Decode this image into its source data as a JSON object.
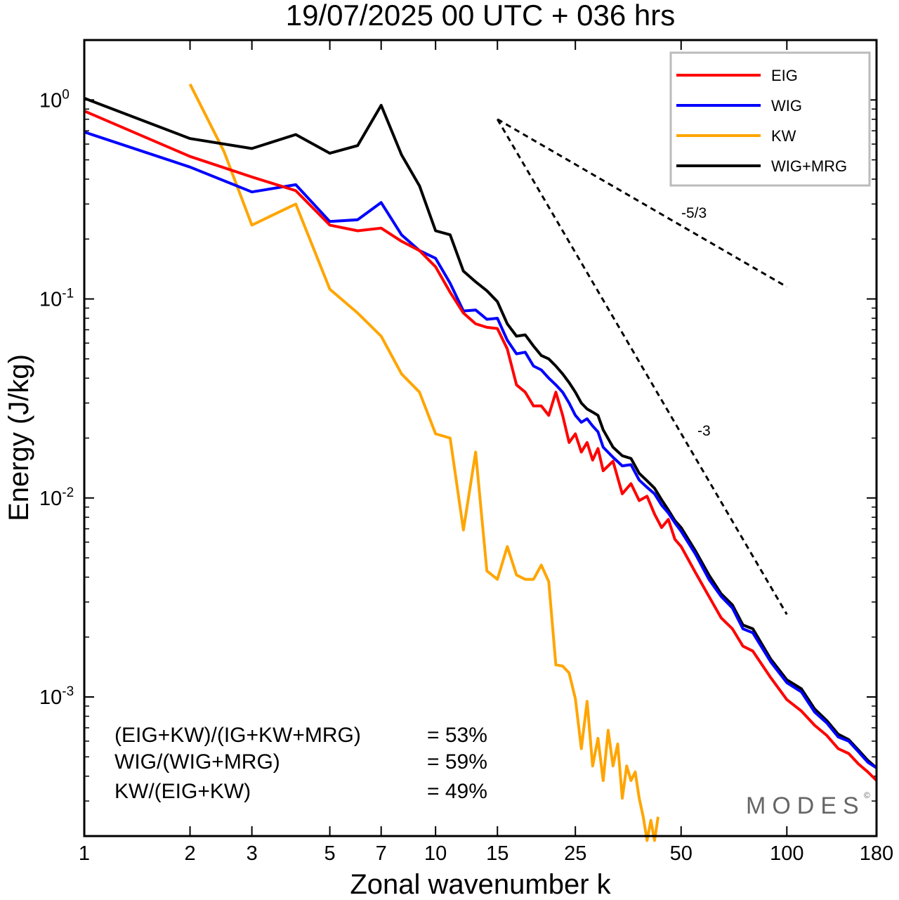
{
  "chart_data": {
    "type": "line",
    "title": "19/07/2025  00 UTC  + 036 hrs",
    "xlabel": "Zonal wavenumber k",
    "ylabel": "Energy (J/kg)",
    "xscale": "log",
    "yscale": "log",
    "xlim": [
      1,
      180
    ],
    "ylim": [
      0.0002,
      2.0
    ],
    "xticks": [
      1,
      2,
      3,
      5,
      7,
      10,
      15,
      25,
      50,
      100,
      180
    ],
    "xticklabels": [
      "1",
      "2",
      "3",
      "5",
      "7",
      "10",
      "15",
      "25",
      "50",
      "100",
      "180"
    ],
    "yticks": [
      {
        "value": 1,
        "base": "10",
        "exp": "0"
      },
      {
        "value": 0.1,
        "base": "10",
        "exp": "-1"
      },
      {
        "value": 0.01,
        "base": "10",
        "exp": "-2"
      },
      {
        "value": 0.001,
        "base": "10",
        "exp": "-3"
      }
    ],
    "legend_position": "top-right",
    "series": [
      {
        "name": "EIG",
        "color": "#ff0000",
        "x": [
          1,
          2,
          3,
          4,
          5,
          6,
          7,
          8,
          9,
          10,
          11,
          12,
          13,
          14,
          15,
          16,
          17,
          18,
          19,
          20,
          21,
          22,
          23,
          24,
          25,
          26,
          27,
          28,
          29,
          30,
          32,
          34,
          36,
          38,
          40,
          42,
          44,
          46,
          48,
          50,
          55,
          60,
          65,
          70,
          75,
          80,
          90,
          100,
          110,
          120,
          130,
          140,
          150,
          160,
          170,
          180
        ],
        "y": [
          0.88,
          0.52,
          0.41,
          0.35,
          0.235,
          0.22,
          0.227,
          0.195,
          0.175,
          0.145,
          0.108,
          0.085,
          0.075,
          0.072,
          0.071,
          0.056,
          0.037,
          0.034,
          0.029,
          0.029,
          0.026,
          0.034,
          0.026,
          0.019,
          0.021,
          0.017,
          0.019,
          0.0155,
          0.0177,
          0.0137,
          0.0153,
          0.0105,
          0.0118,
          0.0097,
          0.0102,
          0.0083,
          0.0071,
          0.0078,
          0.0062,
          0.0057,
          0.0042,
          0.0032,
          0.0025,
          0.0022,
          0.0018,
          0.0017,
          0.00125,
          0.00097,
          0.00085,
          0.00072,
          0.00064,
          0.00055,
          0.00052,
          0.00046,
          0.00042,
          0.00038
        ]
      },
      {
        "name": "WIG",
        "color": "#0000ff",
        "x": [
          1,
          2,
          3,
          4,
          5,
          6,
          7,
          8,
          9,
          10,
          11,
          12,
          13,
          14,
          15,
          16,
          17,
          18,
          19,
          20,
          21,
          22,
          23,
          24,
          25,
          26,
          27,
          28,
          29,
          30,
          32,
          34,
          36,
          38,
          40,
          42,
          44,
          46,
          48,
          50,
          55,
          60,
          65,
          70,
          75,
          80,
          90,
          100,
          110,
          120,
          130,
          140,
          150,
          160,
          170,
          180
        ],
        "y": [
          0.69,
          0.46,
          0.345,
          0.375,
          0.245,
          0.25,
          0.305,
          0.21,
          0.175,
          0.16,
          0.12,
          0.087,
          0.088,
          0.079,
          0.08,
          0.062,
          0.053,
          0.054,
          0.046,
          0.044,
          0.04,
          0.037,
          0.034,
          0.03,
          0.026,
          0.024,
          0.025,
          0.023,
          0.0215,
          0.018,
          0.016,
          0.0145,
          0.0147,
          0.0123,
          0.0113,
          0.0105,
          0.0092,
          0.0084,
          0.0075,
          0.0068,
          0.0052,
          0.0039,
          0.0032,
          0.0028,
          0.0022,
          0.0021,
          0.0015,
          0.00118,
          0.00106,
          0.00084,
          0.00074,
          0.00063,
          0.0006,
          0.00053,
          0.00047,
          0.00044
        ]
      },
      {
        "name": "KW",
        "color": "#ffa500",
        "x": [
          2,
          2.5,
          3,
          4,
          5,
          6,
          7,
          8,
          9,
          10,
          11,
          12,
          13,
          14,
          15,
          16,
          17,
          18,
          19,
          20,
          21,
          22,
          23,
          24,
          25,
          26,
          27,
          28,
          29,
          30,
          31,
          32,
          33,
          34,
          35,
          36,
          37,
          38,
          39,
          40,
          41,
          42,
          43
        ],
        "y": [
          1.2,
          0.55,
          0.235,
          0.3,
          0.112,
          0.085,
          0.065,
          0.042,
          0.034,
          0.021,
          0.02,
          0.0069,
          0.017,
          0.0043,
          0.0039,
          0.0057,
          0.0041,
          0.0039,
          0.0039,
          0.0046,
          0.0038,
          0.00145,
          0.00143,
          0.00132,
          0.00098,
          0.00055,
          0.00095,
          0.00045,
          0.00062,
          0.00038,
          0.00068,
          0.00045,
          0.00058,
          0.00031,
          0.00045,
          0.00038,
          0.00042,
          0.00031,
          0.00025,
          0.00019,
          0.00024,
          0.00019,
          0.00025
        ]
      },
      {
        "name": "WIG+MRG",
        "color": "#000000",
        "x": [
          1,
          2,
          3,
          4,
          5,
          6,
          7,
          8,
          9,
          10,
          11,
          12,
          13,
          14,
          15,
          16,
          17,
          18,
          19,
          20,
          21,
          22,
          23,
          24,
          25,
          26,
          27,
          28,
          29,
          30,
          32,
          34,
          36,
          38,
          40,
          42,
          44,
          46,
          48,
          50,
          55,
          60,
          65,
          70,
          75,
          80,
          90,
          100,
          110,
          120,
          130,
          140,
          150,
          160,
          170,
          180
        ],
        "y": [
          1.02,
          0.64,
          0.57,
          0.67,
          0.54,
          0.59,
          0.94,
          0.53,
          0.37,
          0.22,
          0.21,
          0.138,
          0.122,
          0.11,
          0.097,
          0.075,
          0.065,
          0.066,
          0.058,
          0.052,
          0.05,
          0.046,
          0.042,
          0.038,
          0.034,
          0.03,
          0.028,
          0.027,
          0.026,
          0.022,
          0.018,
          0.0163,
          0.0158,
          0.0133,
          0.0122,
          0.0112,
          0.0098,
          0.0087,
          0.0077,
          0.0071,
          0.0054,
          0.0041,
          0.0033,
          0.0029,
          0.0023,
          0.0022,
          0.00155,
          0.00122,
          0.0011,
          0.00087,
          0.00076,
          0.00065,
          0.00061,
          0.00054,
          0.00048,
          0.00044
        ]
      }
    ],
    "reference_slopes": [
      {
        "label": "-5/3",
        "x": [
          15,
          100
        ],
        "y": [
          0.8,
          0.115
        ]
      },
      {
        "label": "-3",
        "x": [
          15,
          100
        ],
        "y": [
          0.8,
          0.0026
        ]
      }
    ],
    "annotations": [
      {
        "label": "(EIG+KW)/(IG+KW+MRG)",
        "value": "= 53%"
      },
      {
        "label": "WIG/(WIG+MRG)",
        "value": "= 59%"
      },
      {
        "label": "KW/(EIG+KW)",
        "value": "= 49%"
      }
    ],
    "watermark": "MODES",
    "watermark_mark": "©"
  }
}
